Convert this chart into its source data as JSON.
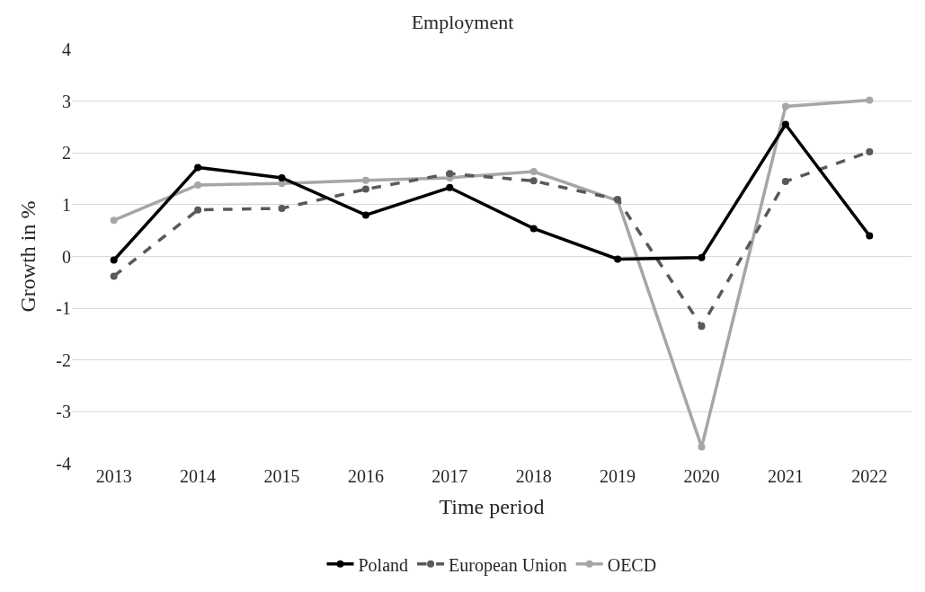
{
  "chart_data": {
    "type": "line",
    "title": "Employment",
    "xlabel": "Time period",
    "ylabel": "Growth in %",
    "categories": [
      "2013",
      "2014",
      "2015",
      "2016",
      "2017",
      "2018",
      "2019",
      "2020",
      "2021",
      "2022"
    ],
    "series": [
      {
        "name": "Poland",
        "color": "#000000",
        "line_style": "solid",
        "values": [
          -0.07,
          1.72,
          1.52,
          0.8,
          1.33,
          0.54,
          -0.05,
          -0.02,
          2.55,
          0.4
        ]
      },
      {
        "name": "European Union",
        "color": "#595959",
        "line_style": "dashed",
        "values": [
          -0.38,
          0.9,
          0.93,
          1.3,
          1.6,
          1.46,
          1.1,
          -1.35,
          1.45,
          2.02
        ]
      },
      {
        "name": "OECD",
        "color": "#a6a6a6",
        "line_style": "solid",
        "values": [
          0.7,
          1.38,
          1.41,
          1.47,
          1.52,
          1.64,
          1.08,
          -3.68,
          2.9,
          3.02
        ]
      }
    ],
    "ylim": [
      -4,
      4
    ],
    "yticks": [
      -4,
      -3,
      -2,
      -1,
      0,
      1,
      2,
      3,
      4
    ],
    "grid": "y",
    "legend": "bottom",
    "marker": "circle"
  }
}
